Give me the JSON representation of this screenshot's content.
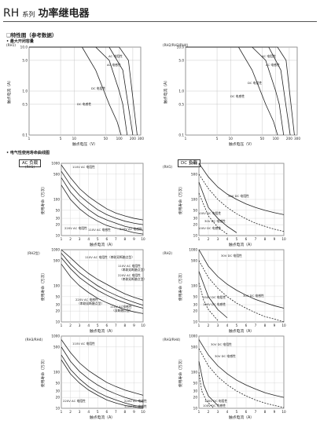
{
  "header": {
    "series": "RH",
    "series_suffix": "系列",
    "title": "功率继电器"
  },
  "sections": {
    "characteristics": "❑特性图（参考数据）",
    "max_switching": "• 最大开闭容量",
    "life_curve": "• 电气性使用寿命曲线图"
  },
  "load_tags": {
    "ac": "AC 负载",
    "dc": "DC 负载"
  },
  "chart_data": [
    {
      "type": "line",
      "id": "max-switching-rh1",
      "model_label": "(RH1)",
      "xlabel": "触点电压（V）",
      "ylabel": "触点电流（A）",
      "x_ticks": [
        "1",
        "5",
        "10",
        "50",
        "100",
        "200",
        "300"
      ],
      "y_ticks": [
        "10.0",
        "5.0",
        "1.0",
        "0.5",
        "0.1"
      ],
      "scale": "log-log",
      "series": [
        {
          "name": "AC 电阻性",
          "x": [
            1,
            100,
            160,
            250
          ],
          "y": [
            10,
            10,
            5,
            0.1
          ]
        },
        {
          "name": "AC 电感性",
          "x": [
            1,
            60,
            120,
            200
          ],
          "y": [
            10,
            10,
            3,
            0.1
          ]
        },
        {
          "name": "DC 电阻性",
          "x": [
            1,
            30,
            60,
            100,
            120,
            150
          ],
          "y": [
            10,
            10,
            5,
            1,
            0.5,
            0.1
          ]
        },
        {
          "name": "DC 电感性",
          "x": [
            1,
            15,
            30,
            60,
            90,
            110
          ],
          "y": [
            10,
            10,
            3,
            0.5,
            0.2,
            0.1
          ]
        }
      ]
    },
    {
      "type": "line",
      "id": "max-switching-rh2",
      "model_label": "(RH2/RH3/RH4)",
      "xlabel": "触点电压（V）",
      "ylabel": "触点电流（A）",
      "x_ticks": [
        "1",
        "5",
        "10",
        "50",
        "100",
        "200",
        "300"
      ],
      "y_ticks": [
        "10.0",
        "5.0",
        "1.0",
        "0.5",
        "0.1"
      ],
      "scale": "log-log",
      "series": [
        {
          "name": "AC 电阻性",
          "x": [
            1,
            110,
            170,
            260
          ],
          "y": [
            10,
            10,
            5,
            0.1
          ]
        },
        {
          "name": "AC 电感性",
          "x": [
            1,
            70,
            130,
            210
          ],
          "y": [
            10,
            10,
            3,
            0.1
          ]
        },
        {
          "name": "DC 电阻性",
          "x": [
            1,
            30,
            60,
            100,
            120,
            150
          ],
          "y": [
            10,
            10,
            5,
            1,
            0.5,
            0.1
          ]
        },
        {
          "name": "DC 电感性",
          "x": [
            1,
            15,
            30,
            60,
            90,
            110
          ],
          "y": [
            10,
            10,
            3,
            0.5,
            0.2,
            0.1
          ]
        }
      ]
    },
    {
      "type": "line",
      "id": "life-ac-rh1",
      "model_label": "(RH1)",
      "xlabel": "触点电流（A）",
      "ylabel": "使用寿命（万次）",
      "x_ticks": [
        "1",
        "2",
        "3",
        "4",
        "5",
        "6",
        "7",
        "8",
        "9",
        "10"
      ],
      "y_ticks": [
        "1000",
        "500",
        "100",
        "50",
        "30",
        "20",
        "10"
      ],
      "scale": "log-y",
      "xlim": [
        1,
        10
      ],
      "ylim": [
        10,
        1000
      ],
      "series": [
        {
          "name": "110V AC 电阻性",
          "x": [
            1,
            2,
            3,
            4,
            5,
            6,
            7,
            8,
            9,
            10
          ],
          "y": [
            900,
            400,
            200,
            120,
            80,
            55,
            42,
            35,
            30,
            27
          ]
        },
        {
          "name": "220V AC 电阻性",
          "x": [
            1,
            2,
            3,
            4,
            5,
            6,
            7,
            8,
            9,
            10
          ],
          "y": [
            600,
            250,
            130,
            80,
            52,
            38,
            30,
            25,
            22,
            20
          ]
        },
        {
          "name": "110V AC 电感性",
          "x": [
            1,
            2,
            3,
            4,
            5,
            6,
            7,
            8,
            9,
            10
          ],
          "y": [
            400,
            160,
            85,
            52,
            35,
            27,
            22,
            18,
            16,
            14
          ]
        },
        {
          "name": "220V AC 电感性",
          "x": [
            1,
            2,
            3,
            4,
            5,
            6,
            7,
            8,
            9,
            10
          ],
          "y": [
            250,
            100,
            55,
            35,
            25,
            19,
            16,
            14,
            12,
            11
          ]
        }
      ]
    },
    {
      "type": "line",
      "id": "life-dc-rh1",
      "model_label": "(RH1)",
      "xlabel": "触点电流（A）",
      "ylabel": "使用寿命（万次）",
      "x_ticks": [
        "1",
        "2",
        "3",
        "4",
        "5",
        "6",
        "7",
        "8",
        "9",
        "10"
      ],
      "y_ticks": [
        "1000",
        "500",
        "100",
        "50",
        "30",
        "20",
        "10"
      ],
      "scale": "log-y",
      "xlim": [
        1,
        10
      ],
      "ylim": [
        10,
        1000
      ],
      "series": [
        {
          "name": "30V DC 电阻性",
          "x": [
            1,
            2,
            3,
            4,
            5,
            6,
            7,
            8,
            9,
            10
          ],
          "y": [
            1000,
            420,
            220,
            140,
            100,
            75,
            60,
            50,
            43,
            38
          ]
        },
        {
          "name": "100V DC 电阻性",
          "x": [
            1,
            2,
            3,
            4,
            5
          ],
          "y": [
            300,
            60,
            30,
            18,
            12
          ]
        },
        {
          "name": "30V DC 电感性",
          "x": [
            1,
            2,
            3,
            4,
            5,
            6,
            7,
            8,
            9,
            10
          ],
          "y": [
            500,
            200,
            100,
            60,
            40,
            29,
            22,
            18,
            15,
            13
          ]
        },
        {
          "name": "100V DC 电感性",
          "x": [
            1,
            2,
            3,
            4
          ],
          "y": [
            150,
            35,
            17,
            11
          ]
        }
      ]
    },
    {
      "type": "line",
      "id": "life-ac-rh2",
      "model_label": "（RH2型）",
      "xlabel": "触点电流（A）",
      "ylabel": "使用寿命（万次）",
      "x_ticks": [
        "1",
        "2",
        "3",
        "4",
        "5",
        "6",
        "7",
        "8",
        "9",
        "10"
      ],
      "y_ticks": [
        "1000",
        "500",
        "100",
        "50",
        "30",
        "20",
        "10"
      ],
      "scale": "log-y",
      "xlim": [
        1,
        10
      ],
      "ylim": [
        10,
        1000
      ],
      "series": [
        {
          "name": "110V AC 电阻性（串联双断触点型）",
          "x": [
            1,
            2,
            3,
            4,
            5,
            6,
            7,
            8,
            9,
            10
          ],
          "y": [
            1000,
            600,
            350,
            220,
            150,
            110,
            80,
            60,
            48,
            40
          ]
        },
        {
          "name": "110V AC 电阻性（串联双断触点型）2",
          "x": [
            1,
            2,
            3,
            4,
            5,
            6,
            7,
            8,
            9,
            10
          ],
          "y": [
            800,
            400,
            230,
            150,
            100,
            72,
            55,
            43,
            35,
            29
          ]
        },
        {
          "name": "220V AC 电阻性（串联双断触点型）",
          "x": [
            1,
            2,
            3,
            4,
            5,
            6,
            7,
            8,
            9,
            10
          ],
          "y": [
            600,
            300,
            170,
            110,
            75,
            55,
            42,
            34,
            28,
            24
          ]
        },
        {
          "name": "220V AC 电感性（串联双断触点型）",
          "x": [
            1,
            2,
            3,
            4,
            5,
            6,
            7,
            8,
            9,
            10
          ],
          "y": [
            400,
            180,
            100,
            65,
            45,
            34,
            27,
            22,
            19,
            17
          ]
        }
      ],
      "labels": [
        "110V AC 电阻性（串联双断触点型）",
        "110V AC 电阻性",
        "（串联双断触点型）",
        "220V AC 电阻性",
        "（串联双断触点型）",
        "220V AC 电感性",
        "（串联双断触点型）",
        "110V AC电感性",
        "（双断触点型）"
      ]
    },
    {
      "type": "line",
      "id": "life-dc-rh2",
      "model_label": "(RH2)",
      "xlabel": "触点电流（A）",
      "ylabel": "使用寿命（万次）",
      "x_ticks": [
        "1",
        "2",
        "3",
        "4",
        "5",
        "6",
        "7",
        "8",
        "9",
        "10"
      ],
      "y_ticks": [
        "1000",
        "500",
        "100",
        "50",
        "30",
        "20",
        "10"
      ],
      "scale": "log-y",
      "xlim": [
        1,
        10
      ],
      "ylim": [
        10,
        1000
      ],
      "series": [
        {
          "name": "30V DC 电阻性",
          "x": [
            1,
            2,
            3,
            4,
            5,
            6,
            7,
            8,
            9,
            10
          ],
          "y": [
            1000,
            350,
            180,
            110,
            75,
            55,
            42,
            34,
            28,
            24
          ]
        },
        {
          "name": "150V DC 电阻性",
          "x": [
            1,
            2,
            3,
            4
          ],
          "y": [
            250,
            50,
            22,
            13
          ]
        },
        {
          "name": "30V DC 电感性",
          "x": [
            1,
            2,
            3,
            4,
            5,
            6,
            7,
            8,
            9,
            10
          ],
          "y": [
            500,
            170,
            85,
            50,
            33,
            24,
            18,
            14,
            12,
            10
          ]
        },
        {
          "name": "100V DC 电感性",
          "x": [
            1,
            1.5,
            2,
            3
          ],
          "y": [
            120,
            40,
            22,
            11
          ]
        }
      ],
      "labels": [
        "30V DC 电阻性",
        "150V DC 电阻性",
        "30V DC 电感性",
        "100V DC 电感性"
      ]
    },
    {
      "type": "line",
      "id": "life-ac-rh3",
      "model_label": "(RH3/RH4)",
      "xlabel": "触点电流（A）",
      "ylabel": "使用寿命（万次）",
      "x_ticks": [
        "1",
        "2",
        "3",
        "4",
        "5",
        "6",
        "7",
        "8",
        "9",
        "10"
      ],
      "y_ticks": [
        "1000",
        "500",
        "100",
        "50",
        "30",
        "20",
        "10"
      ],
      "scale": "log-y",
      "xlim": [
        1,
        10
      ],
      "ylim": [
        10,
        1000
      ],
      "series": [
        {
          "name": "110V AC 电阻性",
          "x": [
            1,
            2,
            3,
            4,
            5,
            6,
            7,
            8,
            9,
            10
          ],
          "y": [
            800,
            350,
            180,
            110,
            75,
            52,
            40,
            32,
            27,
            23
          ]
        },
        {
          "name": "220V AC 电阻性",
          "x": [
            1,
            2,
            3,
            4,
            5,
            6,
            7,
            8,
            9,
            10
          ],
          "y": [
            500,
            200,
            105,
            65,
            44,
            32,
            25,
            20,
            17,
            15
          ]
        },
        {
          "name": "220V AC 电感性",
          "x": [
            1,
            2,
            3,
            4,
            5,
            6,
            7,
            8,
            9,
            10
          ],
          "y": [
            300,
            120,
            65,
            40,
            28,
            21,
            17,
            14,
            12,
            11
          ]
        },
        {
          "name": "110V AC 电感性",
          "x": [
            1,
            2,
            3,
            4,
            5,
            6,
            7,
            8,
            9,
            10
          ],
          "y": [
            220,
            90,
            50,
            32,
            23,
            17,
            14,
            12,
            11,
            10
          ]
        }
      ]
    },
    {
      "type": "line",
      "id": "life-dc-rh3",
      "model_label": "(RH3/RH4)",
      "xlabel": "触点电流（A）",
      "ylabel": "使用寿命（万次）",
      "x_ticks": [
        "1",
        "2",
        "3",
        "4",
        "5",
        "6",
        "7",
        "8",
        "9",
        "10"
      ],
      "y_ticks": [
        "1000",
        "500",
        "100",
        "50",
        "30",
        "20",
        "10"
      ],
      "scale": "log-y",
      "xlim": [
        1,
        10
      ],
      "ylim": [
        10,
        1000
      ],
      "series": [
        {
          "name": "30V DC 电阻性",
          "x": [
            1,
            2,
            3,
            4,
            5,
            6,
            7,
            8,
            9,
            10
          ],
          "y": [
            800,
            300,
            150,
            90,
            60,
            44,
            34,
            27,
            23,
            20
          ]
        },
        {
          "name": "30V DC 电感性",
          "x": [
            1,
            2,
            3,
            4,
            5,
            6,
            7,
            8,
            9,
            10
          ],
          "y": [
            450,
            150,
            75,
            45,
            30,
            22,
            17,
            14,
            12,
            10.5
          ]
        },
        {
          "name": "100V DC 电阻性",
          "x": [
            1,
            1.5,
            2,
            3
          ],
          "y": [
            200,
            45,
            22,
            12
          ]
        },
        {
          "name": "100V DC 电感性",
          "x": [
            1,
            1.3,
            1.8,
            2.5
          ],
          "y": [
            100,
            30,
            16,
            10.5
          ]
        }
      ]
    }
  ]
}
